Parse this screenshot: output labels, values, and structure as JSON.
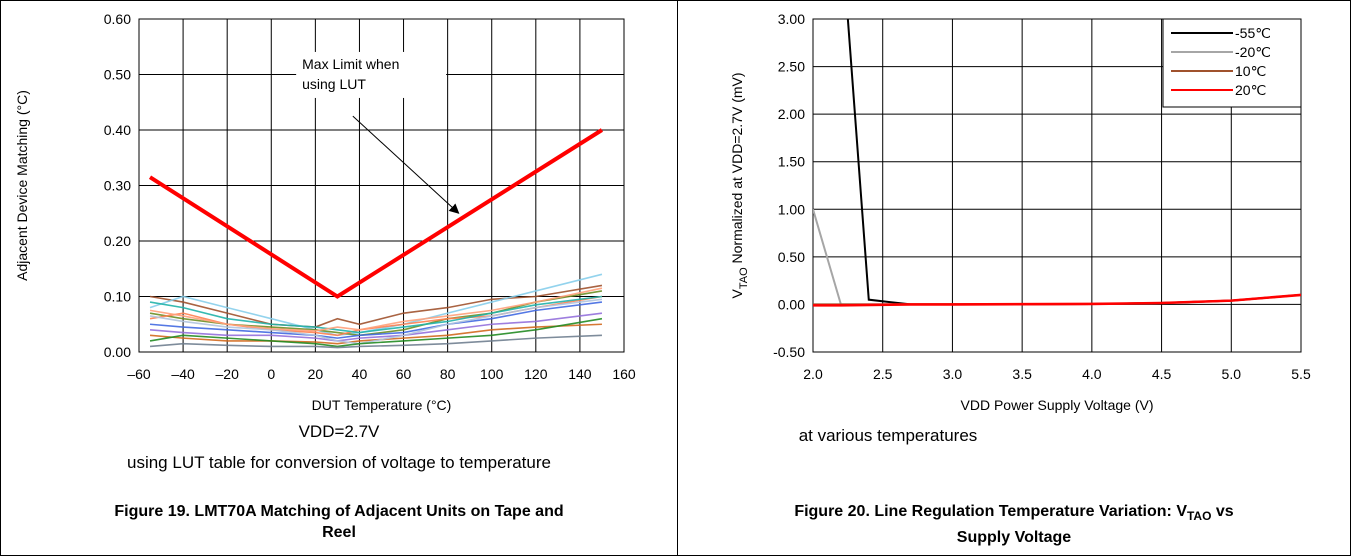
{
  "chart_data": [
    {
      "type": "line",
      "xlabel": "DUT Temperature (°C)",
      "ylabel": "Adjacent Device Matching (°C)",
      "xlim": [
        -60,
        160
      ],
      "ylim": [
        0,
        0.6
      ],
      "x_ticks": [
        "–60",
        "–40",
        "–20",
        "0",
        "20",
        "40",
        "60",
        "80",
        "100",
        "120",
        "140",
        "160"
      ],
      "y_ticks": [
        "0.00",
        "0.10",
        "0.20",
        "0.30",
        "0.40",
        "0.50",
        "0.60"
      ],
      "grid": true,
      "annotation": {
        "lines": [
          "Max Limit when",
          "using LUT"
        ],
        "points_to": [
          85,
          0.25
        ]
      },
      "max_limit": {
        "color": "#ff0000",
        "x": [
          -55,
          30,
          150
        ],
        "y": [
          0.315,
          0.1,
          0.4
        ]
      },
      "noise_series": [
        {
          "color": "#a0522d",
          "x": [
            -55,
            -40,
            -20,
            0,
            20,
            30,
            40,
            60,
            80,
            100,
            120,
            150
          ],
          "y": [
            0.1,
            0.09,
            0.07,
            0.05,
            0.045,
            0.06,
            0.05,
            0.07,
            0.08,
            0.095,
            0.1,
            0.12
          ]
        },
        {
          "color": "#87ceeb",
          "x": [
            -55,
            -40,
            -20,
            0,
            20,
            30,
            40,
            60,
            80,
            100,
            120,
            150
          ],
          "y": [
            0.08,
            0.1,
            0.08,
            0.06,
            0.04,
            0.03,
            0.035,
            0.05,
            0.07,
            0.09,
            0.11,
            0.14
          ]
        },
        {
          "color": "#6b8e23",
          "x": [
            -55,
            -40,
            -20,
            0,
            20,
            30,
            40,
            60,
            80,
            100,
            120,
            150
          ],
          "y": [
            0.07,
            0.06,
            0.05,
            0.045,
            0.04,
            0.035,
            0.03,
            0.04,
            0.06,
            0.07,
            0.09,
            0.11
          ]
        },
        {
          "color": "#4169e1",
          "x": [
            -55,
            -40,
            -20,
            0,
            20,
            30,
            40,
            60,
            80,
            100,
            120,
            150
          ],
          "y": [
            0.05,
            0.045,
            0.04,
            0.035,
            0.03,
            0.025,
            0.03,
            0.035,
            0.05,
            0.06,
            0.075,
            0.09
          ]
        },
        {
          "color": "#ff7f50",
          "x": [
            -55,
            -40,
            -20,
            0,
            20,
            30,
            40,
            60,
            80,
            100,
            120,
            150
          ],
          "y": [
            0.06,
            0.07,
            0.05,
            0.04,
            0.035,
            0.03,
            0.04,
            0.05,
            0.06,
            0.065,
            0.08,
            0.1
          ]
        },
        {
          "color": "#9370db",
          "x": [
            -55,
            -40,
            -20,
            0,
            20,
            30,
            40,
            60,
            80,
            100,
            120,
            150
          ],
          "y": [
            0.04,
            0.035,
            0.03,
            0.03,
            0.025,
            0.02,
            0.025,
            0.03,
            0.04,
            0.05,
            0.055,
            0.07
          ]
        },
        {
          "color": "#20b2aa",
          "x": [
            -55,
            -40,
            -20,
            0,
            20,
            30,
            40,
            60,
            80,
            100,
            120,
            150
          ],
          "y": [
            0.09,
            0.08,
            0.06,
            0.05,
            0.045,
            0.04,
            0.035,
            0.045,
            0.055,
            0.07,
            0.085,
            0.1
          ]
        },
        {
          "color": "#d2691e",
          "x": [
            -55,
            -40,
            -20,
            0,
            20,
            30,
            40,
            60,
            80,
            100,
            120,
            150
          ],
          "y": [
            0.03,
            0.025,
            0.02,
            0.02,
            0.018,
            0.015,
            0.02,
            0.025,
            0.03,
            0.04,
            0.045,
            0.05
          ]
        },
        {
          "color": "#b0c4de",
          "x": [
            -55,
            -40,
            -20,
            0,
            20,
            30,
            40,
            60,
            80,
            100,
            120,
            150
          ],
          "y": [
            0.065,
            0.055,
            0.045,
            0.04,
            0.03,
            0.02,
            0.015,
            0.03,
            0.05,
            0.065,
            0.08,
            0.095
          ]
        },
        {
          "color": "#228b22",
          "x": [
            -55,
            -40,
            -20,
            0,
            20,
            30,
            40,
            60,
            80,
            100,
            120,
            150
          ],
          "y": [
            0.02,
            0.03,
            0.025,
            0.02,
            0.015,
            0.01,
            0.015,
            0.02,
            0.025,
            0.03,
            0.04,
            0.06
          ]
        },
        {
          "color": "#ffa07a",
          "x": [
            -55,
            -40,
            -20,
            0,
            20,
            30,
            40,
            60,
            80,
            100,
            120,
            150
          ],
          "y": [
            0.075,
            0.065,
            0.05,
            0.042,
            0.038,
            0.045,
            0.04,
            0.055,
            0.065,
            0.075,
            0.09,
            0.115
          ]
        },
        {
          "color": "#708090",
          "x": [
            -55,
            -40,
            -20,
            0,
            20,
            30,
            40,
            60,
            80,
            100,
            120,
            150
          ],
          "y": [
            0.01,
            0.015,
            0.012,
            0.01,
            0.01,
            0.008,
            0.01,
            0.012,
            0.015,
            0.02,
            0.025,
            0.03
          ]
        }
      ]
    },
    {
      "type": "line",
      "xlabel": "VDD Power Supply Voltage (V)",
      "ylabel_parts": [
        "V",
        "TAO",
        " Normalized at  VDD=2.7V (mV)"
      ],
      "xlim": [
        2.0,
        5.5
      ],
      "ylim": [
        -0.5,
        3.0
      ],
      "x_ticks": [
        "2.0",
        "2.5",
        "3.0",
        "3.5",
        "4.0",
        "4.5",
        "5.0",
        "5.5"
      ],
      "y_ticks": [
        "-0.50",
        "0.00",
        "0.50",
        "1.00",
        "1.50",
        "2.00",
        "2.50",
        "3.00"
      ],
      "grid": true,
      "legend_position": "top-right",
      "series": [
        {
          "name": "-55℃",
          "color": "#000000",
          "x": [
            2.25,
            2.4,
            2.7,
            3.0,
            4.0,
            4.5,
            5.0,
            5.5
          ],
          "y": [
            3.0,
            0.05,
            0.0,
            0.0,
            0.005,
            0.015,
            0.04,
            0.1
          ]
        },
        {
          "name": "-20℃",
          "color": "#a6a6a6",
          "x": [
            2.0,
            2.2,
            2.7,
            3.0,
            4.0,
            4.5,
            5.0,
            5.5
          ],
          "y": [
            1.0,
            0.0,
            0.0,
            0.0,
            0.005,
            0.015,
            0.04,
            0.1
          ]
        },
        {
          "name": "10℃",
          "color": "#a0522d",
          "x": [
            2.0,
            2.2,
            2.7,
            3.0,
            4.0,
            4.5,
            5.0,
            5.5
          ],
          "y": [
            0.0,
            0.0,
            0.0,
            0.0,
            0.005,
            0.015,
            0.04,
            0.1
          ]
        },
        {
          "name": "20℃",
          "color": "#ff0000",
          "x": [
            2.0,
            2.2,
            2.7,
            3.0,
            4.0,
            4.5,
            5.0,
            5.5
          ],
          "y": [
            -0.01,
            -0.01,
            0.0,
            0.0,
            0.005,
            0.015,
            0.04,
            0.1
          ]
        }
      ]
    }
  ],
  "captions": {
    "left_line1": "VDD=2.7V",
    "left_line2": "using LUT table for conversion of voltage to temperature",
    "right_line1": "at various temperatures"
  },
  "figure_titles": {
    "fig19_line1": "Figure 19. LMT70A Matching of Adjacent Units on Tape and",
    "fig19_line2": "Reel",
    "fig20_part1": "Figure 20.  Line Regulation Temperature Variation: V",
    "fig20_sub": "TAO",
    "fig20_part2": " vs",
    "fig20_line2": "Supply Voltage"
  }
}
